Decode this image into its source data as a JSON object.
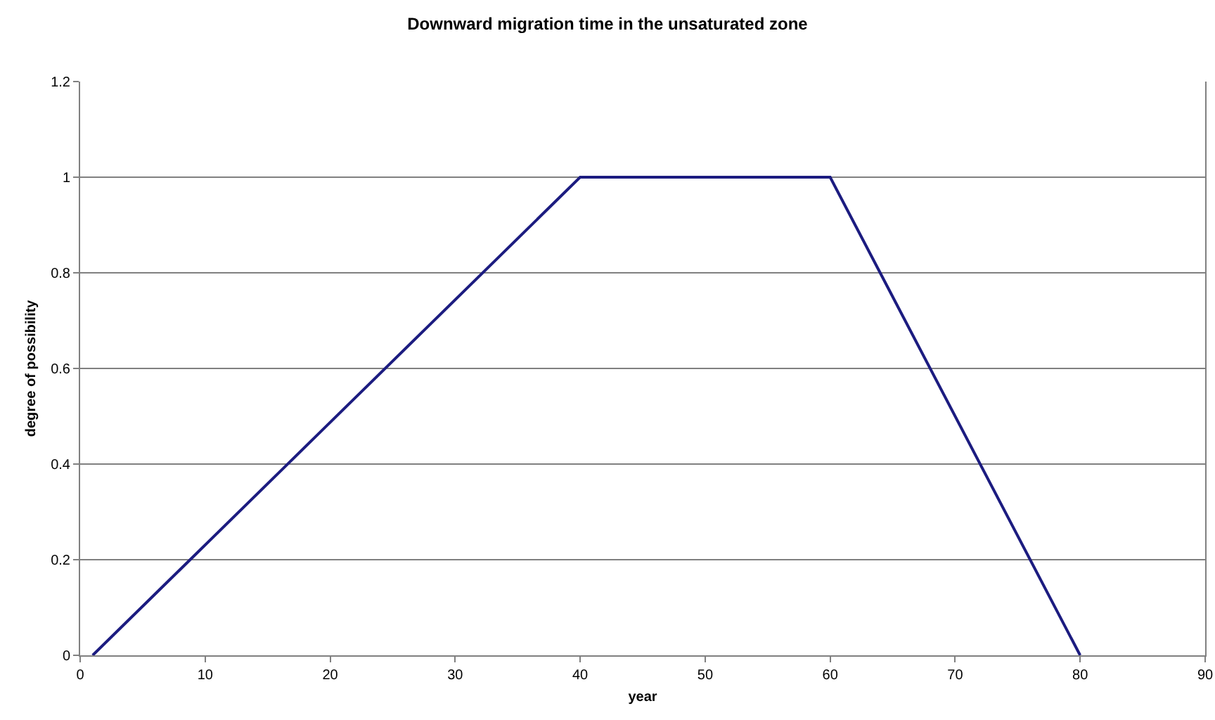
{
  "chart_data": {
    "type": "line",
    "title": "Downward migration time in the unsaturated zone",
    "xlabel": "year",
    "ylabel": "degree of possibility",
    "x": [
      1,
      40,
      60,
      80
    ],
    "series": [
      {
        "color": "#1c1c80",
        "values": [
          0,
          1,
          1,
          0
        ]
      }
    ],
    "xlim": [
      0,
      90
    ],
    "xticks": [
      0,
      10,
      20,
      30,
      40,
      50,
      60,
      70,
      80,
      90
    ],
    "ylim": [
      0,
      1.2
    ],
    "yticks": [
      0,
      0.2,
      0.4,
      0.6,
      0.8,
      1,
      1.2
    ],
    "grid": "y",
    "marker": "none",
    "line_style": "solid"
  }
}
